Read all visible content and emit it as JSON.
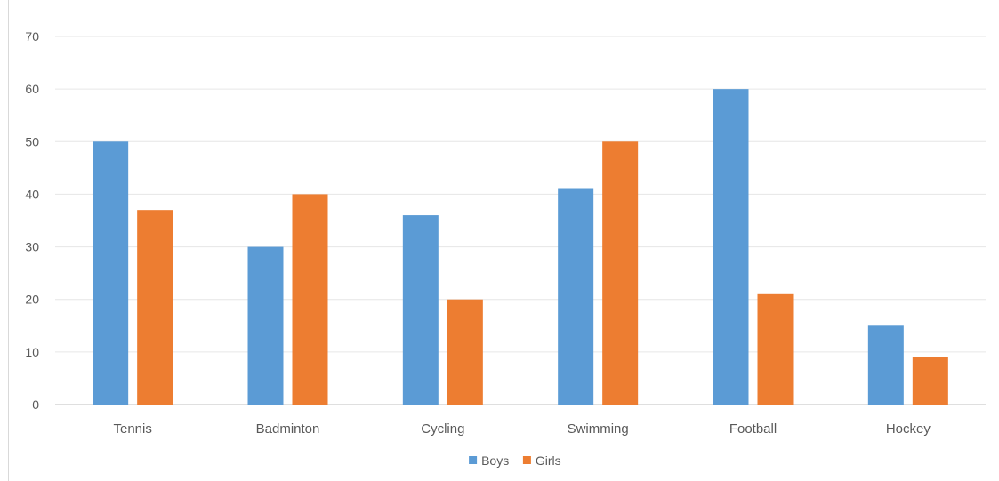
{
  "chart_data": {
    "type": "bar",
    "title": "",
    "xlabel": "",
    "ylabel": "",
    "categories": [
      "Tennis",
      "Badminton",
      "Cycling",
      "Swimming",
      "Football",
      "Hockey"
    ],
    "series": [
      {
        "name": "Boys",
        "values": [
          50,
          30,
          36,
          41,
          60,
          15
        ],
        "color": "#5b9bd5"
      },
      {
        "name": "Girls",
        "values": [
          37,
          40,
          20,
          50,
          21,
          9
        ],
        "color": "#ed7d31"
      }
    ],
    "ylim": [
      0,
      70
    ],
    "yticks": [
      0,
      10,
      20,
      30,
      40,
      50,
      60,
      70
    ],
    "grid": true,
    "legend_position": "bottom"
  }
}
